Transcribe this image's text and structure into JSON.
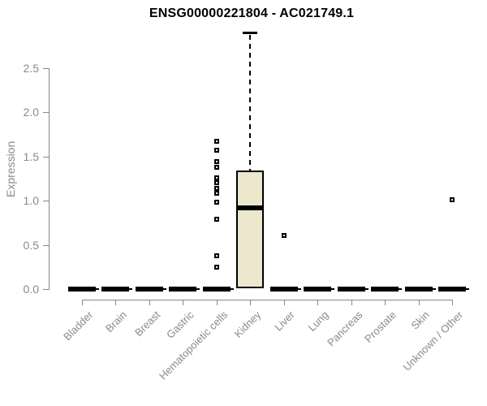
{
  "title": "ENSG00000221804 - AC021749.1",
  "colors": {
    "background": "#ffffff",
    "title_text": "#000000",
    "axis_line": "#888888",
    "tick_label_text": "#8a8a8a",
    "box_fill": "#ECE7CD",
    "box_border": "#000000",
    "median_line": "#000000",
    "outlier": "#000000"
  },
  "chart_data": {
    "type": "boxplot",
    "title": "ENSG00000221804 - AC021749.1",
    "xlabel": "",
    "ylabel": "Expression",
    "ylim": [
      0,
      2.9
    ],
    "yticks": [
      0.0,
      0.5,
      1.0,
      1.5,
      2.0,
      2.5
    ],
    "grid": false,
    "legend": null,
    "categories": [
      "Bladder",
      "Brain",
      "Breast",
      "Gastric",
      "Hematopoietic cells",
      "Kidney",
      "Liver",
      "Lung",
      "Pancreas",
      "Prostate",
      "Skin",
      "Unknown / Other"
    ],
    "boxes": [
      {
        "category": "Bladder",
        "whisker_low": 0,
        "q1": 0,
        "median": 0,
        "q3": 0,
        "whisker_high": 0,
        "outliers": []
      },
      {
        "category": "Brain",
        "whisker_low": 0,
        "q1": 0,
        "median": 0,
        "q3": 0,
        "whisker_high": 0,
        "outliers": []
      },
      {
        "category": "Breast",
        "whisker_low": 0,
        "q1": 0,
        "median": 0,
        "q3": 0,
        "whisker_high": 0,
        "outliers": []
      },
      {
        "category": "Gastric",
        "whisker_low": 0,
        "q1": 0,
        "median": 0,
        "q3": 0,
        "whisker_high": 0,
        "outliers": []
      },
      {
        "category": "Hematopoietic cells",
        "whisker_low": 0,
        "q1": 0,
        "median": 0,
        "q3": 0,
        "whisker_high": 0,
        "outliers": [
          1.67,
          1.57,
          1.44,
          1.38,
          1.26,
          1.2,
          1.14,
          1.08,
          0.98,
          0.79,
          0.38,
          0.25
        ]
      },
      {
        "category": "Kidney",
        "whisker_low": 0,
        "q1": 0.01,
        "median": 0.92,
        "q3": 1.34,
        "whisker_high": 2.9,
        "outliers": []
      },
      {
        "category": "Liver",
        "whisker_low": 0,
        "q1": 0,
        "median": 0,
        "q3": 0,
        "whisker_high": 0,
        "outliers": [
          0.61
        ]
      },
      {
        "category": "Lung",
        "whisker_low": 0,
        "q1": 0,
        "median": 0,
        "q3": 0,
        "whisker_high": 0,
        "outliers": []
      },
      {
        "category": "Pancreas",
        "whisker_low": 0,
        "q1": 0,
        "median": 0,
        "q3": 0,
        "whisker_high": 0,
        "outliers": []
      },
      {
        "category": "Prostate",
        "whisker_low": 0,
        "q1": 0,
        "median": 0,
        "q3": 0,
        "whisker_high": 0,
        "outliers": []
      },
      {
        "category": "Skin",
        "whisker_low": 0,
        "q1": 0,
        "median": 0,
        "q3": 0,
        "whisker_high": 0,
        "outliers": []
      },
      {
        "category": "Unknown / Other",
        "whisker_low": 0,
        "q1": 0,
        "median": 0,
        "q3": 0,
        "whisker_high": 0,
        "outliers": [
          1.01
        ]
      }
    ]
  }
}
